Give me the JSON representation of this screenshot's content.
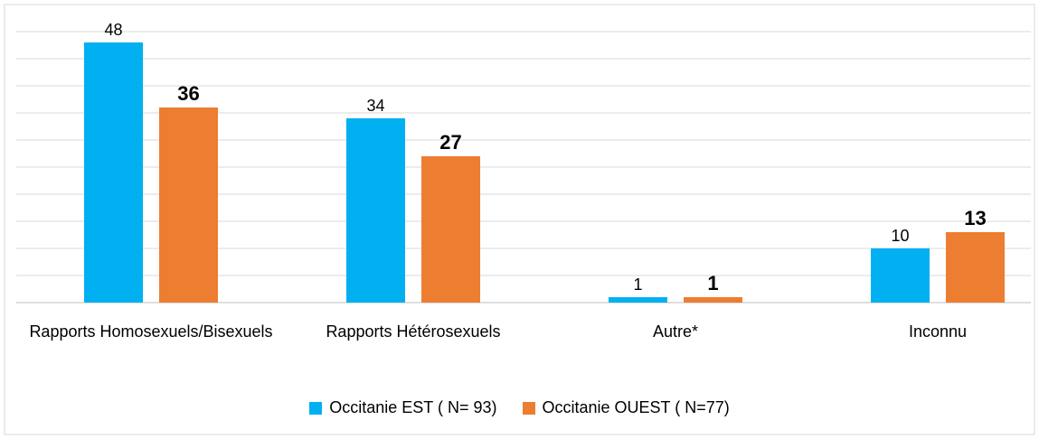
{
  "chart_data": {
    "type": "bar",
    "categories": [
      "Rapports Homosexuels/Bisexuels",
      "Rapports Hétérosexuels",
      "Autre*",
      "Inconnu"
    ],
    "series": [
      {
        "name": "Occitanie EST ( N= 93)",
        "color": "#00b0f0",
        "values": [
          48,
          34,
          1,
          10
        ]
      },
      {
        "name": "Occitanie OUEST ( N=77)",
        "color": "#ed7d31",
        "values": [
          36,
          27,
          1,
          13
        ]
      }
    ],
    "ylim": [
      0,
      50
    ],
    "yticks": [
      0,
      5,
      10,
      15,
      20,
      25,
      30,
      35,
      40,
      45,
      50
    ],
    "grid": true,
    "legend": "bottom"
  }
}
